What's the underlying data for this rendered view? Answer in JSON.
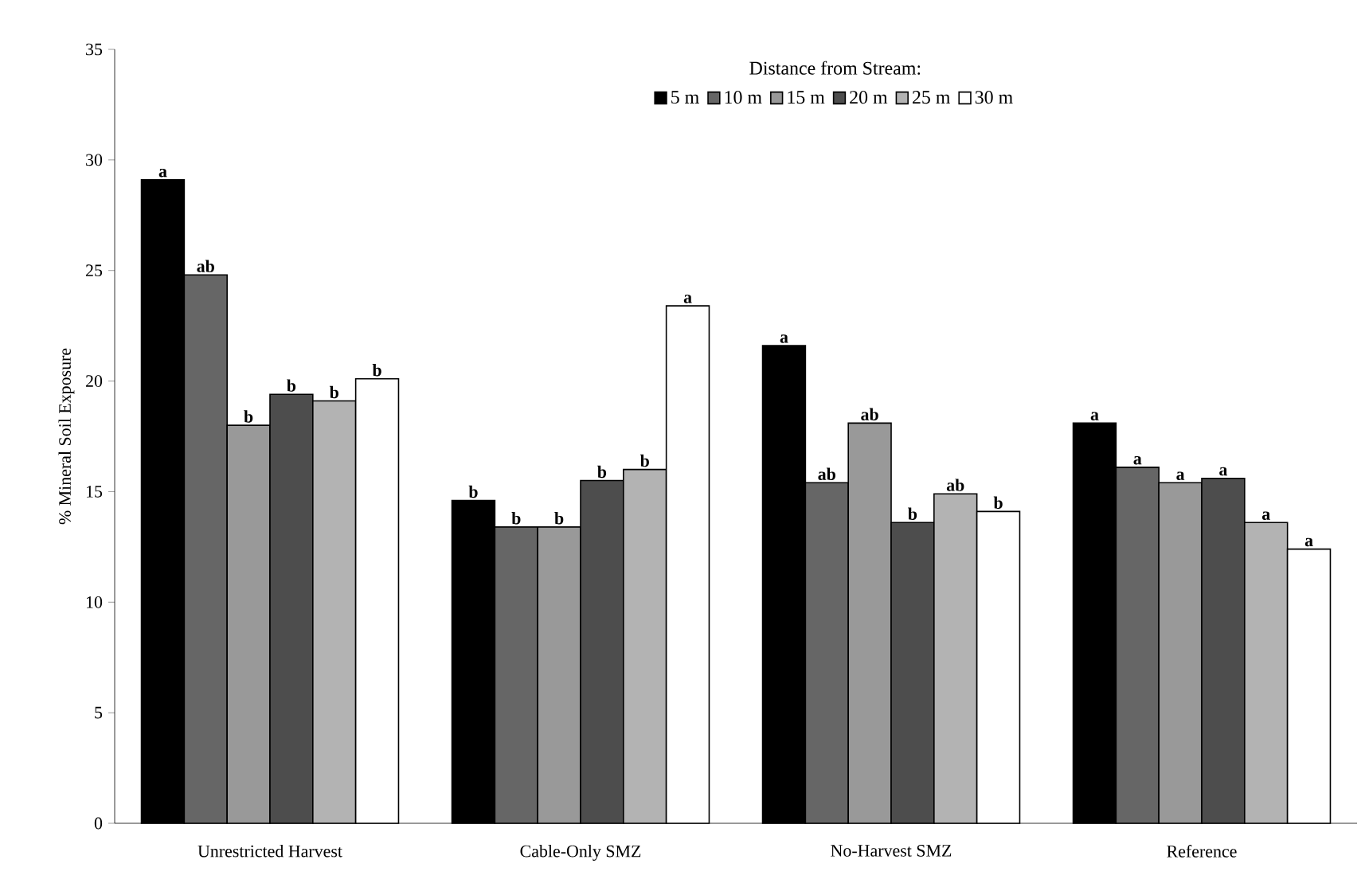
{
  "chart_data": {
    "type": "bar",
    "legend_title": "Distance from Stream:",
    "ylabel": "% Mineral Soil Exposure",
    "categories": [
      "Unrestricted Harvest",
      "Cable-Only SMZ",
      "No-Harvest SMZ",
      "Reference"
    ],
    "series": [
      {
        "name": "5 m",
        "color": "#000000",
        "values": [
          29.1,
          14.6,
          21.6,
          18.1
        ],
        "value_labels": [
          "a",
          "b",
          "a",
          "a"
        ]
      },
      {
        "name": "10 m",
        "color": "#666666",
        "values": [
          24.8,
          13.4,
          15.4,
          16.1
        ],
        "value_labels": [
          "ab",
          "b",
          "ab",
          "a"
        ]
      },
      {
        "name": "15 m",
        "color": "#999999",
        "values": [
          18.0,
          13.4,
          18.1,
          15.4
        ],
        "value_labels": [
          "b",
          "b",
          "ab",
          "a"
        ]
      },
      {
        "name": "20 m",
        "color": "#4d4d4d",
        "values": [
          19.4,
          15.5,
          13.6,
          15.6
        ],
        "value_labels": [
          "b",
          "b",
          "b",
          "a"
        ]
      },
      {
        "name": "25 m",
        "color": "#b3b3b3",
        "values": [
          19.1,
          16.0,
          14.9,
          13.6
        ],
        "value_labels": [
          "b",
          "b",
          "ab",
          "a"
        ]
      },
      {
        "name": "30 m",
        "color": "#ffffff",
        "values": [
          20.1,
          23.4,
          14.1,
          12.4
        ],
        "value_labels": [
          "b",
          "a",
          "b",
          "a"
        ]
      }
    ],
    "ylim": [
      0,
      35
    ],
    "yticks": [
      0,
      5,
      10,
      15,
      20,
      25,
      30,
      35
    ],
    "grid": false,
    "legend": "top"
  }
}
